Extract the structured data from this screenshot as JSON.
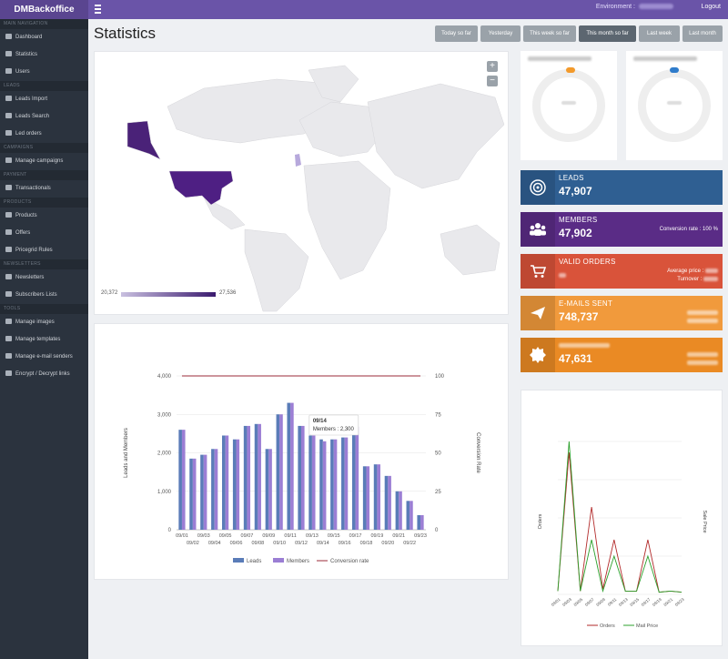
{
  "brand": "DMBackoffice",
  "top": {
    "environment_label": "Environment :",
    "logout": "Logout"
  },
  "sidebar": {
    "sections": [
      {
        "label": "Main navigation",
        "items": [
          "Dashboard",
          "Statistics",
          "Users"
        ]
      },
      {
        "label": "Leads",
        "items": [
          "Leads Import",
          "Leads Search",
          "Led orders"
        ]
      },
      {
        "label": "Campaigns",
        "items": [
          "Manage campaigns"
        ]
      },
      {
        "label": "Payment",
        "items": [
          "Transactionals"
        ]
      },
      {
        "label": "Products",
        "items": [
          "Products",
          "Offers",
          "Pricegrid Rules"
        ]
      },
      {
        "label": "Newsletters",
        "items": [
          "Newsletters",
          "Subscribers Lists"
        ]
      },
      {
        "label": "Tools",
        "items": [
          "Manage images",
          "Manage templates",
          "Manage e-mail senders",
          "Encrypt / Decrypt links"
        ]
      }
    ]
  },
  "page_title": "Statistics",
  "date_buttons": [
    "Today so far",
    "Yesterday",
    "This week so far",
    "This month so far",
    "Last week",
    "Last month"
  ],
  "map": {
    "zoom_in": "+",
    "zoom_out": "−",
    "min": "20,372",
    "max": "27,536"
  },
  "stats": {
    "leads": {
      "name": "LEADS",
      "value": "47,907",
      "color": "#2f5f92"
    },
    "members": {
      "name": "MEMBERS",
      "value": "47,902",
      "conversion": "Conversion rate : 100 %",
      "color": "#5a2c86"
    },
    "orders": {
      "name": "VALID ORDERS",
      "avg_label": "Average price :",
      "turnover_label": "Turnover :",
      "color": "#d9533a"
    },
    "emails": {
      "name": "E-MAILS SENT",
      "value": "748,737",
      "color": "#f19a3c"
    },
    "fifth": {
      "value": "47,631",
      "color": "#ea8a24"
    }
  },
  "chart_data": [
    {
      "type": "bar",
      "categories": [
        "09/01",
        "09/02",
        "09/03",
        "09/04",
        "09/05",
        "09/06",
        "09/07",
        "09/08",
        "09/09",
        "09/10",
        "09/11",
        "09/12",
        "09/13",
        "09/14",
        "09/15",
        "09/16",
        "09/17",
        "09/18",
        "09/19",
        "09/20",
        "09/21",
        "09/22",
        "09/23"
      ],
      "series": [
        {
          "name": "Leads",
          "values": [
            2600,
            1850,
            1950,
            2100,
            2450,
            2350,
            2700,
            2750,
            2100,
            3000,
            3300,
            2700,
            2450,
            2350,
            2350,
            2400,
            2680,
            1650,
            1700,
            1400,
            1000,
            750,
            380
          ]
        },
        {
          "name": "Members",
          "values": [
            2600,
            1850,
            1950,
            2100,
            2450,
            2350,
            2700,
            2750,
            2100,
            3000,
            3300,
            2700,
            2450,
            2300,
            2350,
            2400,
            2680,
            1650,
            1700,
            1400,
            1000,
            750,
            380
          ]
        },
        {
          "name": "Conversion rate",
          "values": [
            100,
            100,
            100,
            100,
            100,
            100,
            100,
            100,
            100,
            100,
            100,
            100,
            100,
            100,
            100,
            100,
            100,
            100,
            100,
            100,
            100,
            100,
            100
          ]
        }
      ],
      "ylabel": "Leads and Members",
      "y2label": "Conversion Rate",
      "yticks": [
        "0",
        "1,000",
        "2,000",
        "3,000",
        "4,000"
      ],
      "y2ticks": [
        "0",
        "25",
        "50",
        "75",
        "100"
      ],
      "ylim": [
        0,
        4000
      ],
      "y2lim": [
        0,
        100
      ],
      "tooltip": {
        "title": "09/14",
        "label": "Members :",
        "value": "2,300"
      }
    },
    {
      "type": "line",
      "categories": [
        "09/01",
        "09/03",
        "09/05",
        "09/07",
        "09/09",
        "09/11",
        "09/13",
        "09/15",
        "09/17",
        "09/19",
        "09/21",
        "09/23"
      ],
      "series": [
        {
          "name": "Orders",
          "values": [
            0.3,
            13,
            0.3,
            8,
            0.5,
            5,
            0.3,
            0.3,
            5,
            0.2,
            0.3,
            0.2
          ],
          "color": "#b22a2a"
        },
        {
          "name": "Mail Price",
          "values": [
            0.3,
            14,
            0.3,
            5,
            0.3,
            3.5,
            0.3,
            0.3,
            3.5,
            0.2,
            0.3,
            0.2
          ],
          "color": "#2ca02c"
        }
      ],
      "ylabel": "Orders",
      "y2label": "Sale Price"
    }
  ]
}
